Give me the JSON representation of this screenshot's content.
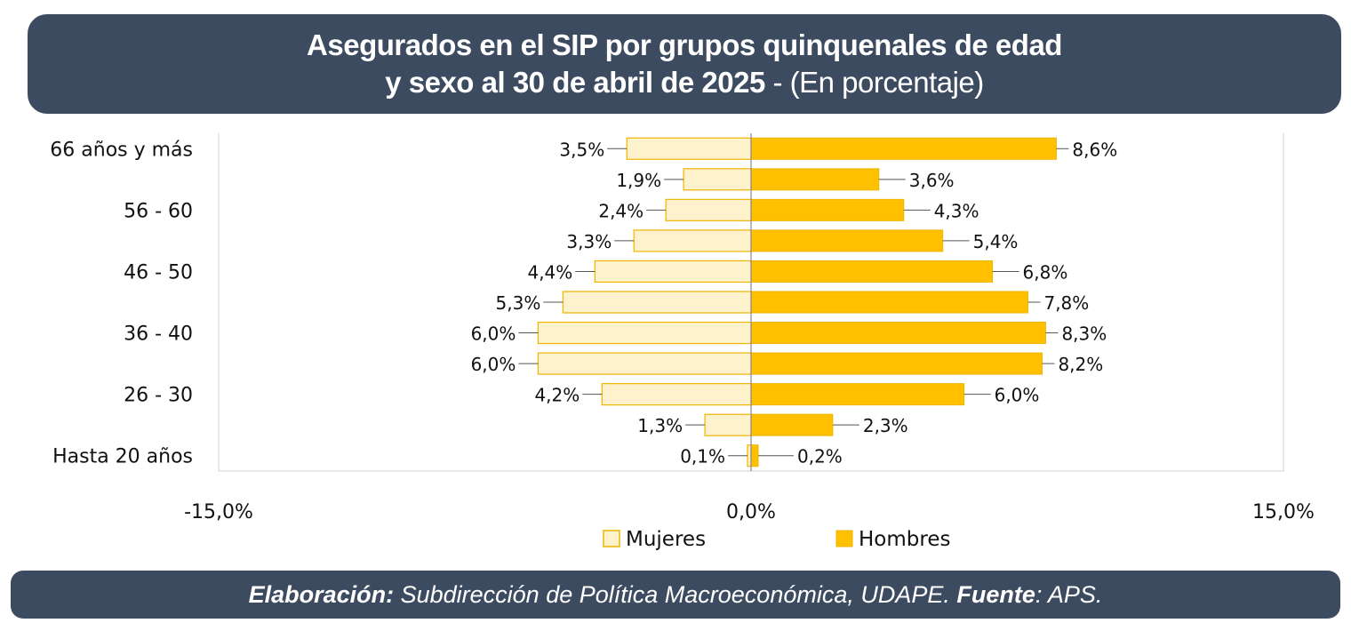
{
  "header": {
    "title_line1": "Asegurados en el SIP por grupos quinquenales de edad",
    "title_line2_bold": "y sexo al 30 de abril de 2025",
    "title_line2_rest": " - (En porcentaje)"
  },
  "footer": {
    "label1": "Elaboración:",
    "text1": " Subdirección de Política Macroeconómica, UDAPE. ",
    "label2": "Fuente",
    "text2": ": APS."
  },
  "chart_data": {
    "type": "bar",
    "orientation": "horizontal-population-pyramid",
    "categories_top_to_bottom": [
      "66 años y más",
      "",
      "56  -  60",
      "",
      "46  -  50",
      "",
      "36  -  40",
      "",
      "26  -  30",
      "",
      "Hasta 20 años"
    ],
    "series": [
      {
        "name": "Mujeres",
        "values": [
          -3.5,
          -1.9,
          -2.4,
          -3.3,
          -4.4,
          -5.3,
          -6.0,
          -6.0,
          -4.2,
          -1.3,
          -0.1
        ],
        "labels": [
          "3,5%",
          "1,9%",
          "2,4%",
          "3,3%",
          "4,4%",
          "5,3%",
          "6,0%",
          "6,0%",
          "4,2%",
          "1,3%",
          "0,1%"
        ],
        "color": "#fdf2cc",
        "border": "#f0b400"
      },
      {
        "name": "Hombres",
        "values": [
          8.6,
          3.6,
          4.3,
          5.4,
          6.8,
          7.8,
          8.3,
          8.2,
          6.0,
          2.3,
          0.2
        ],
        "labels": [
          "8,6%",
          "3,6%",
          "4,3%",
          "5,4%",
          "6,8%",
          "7,8%",
          "8,3%",
          "8,2%",
          "6,0%",
          "2,3%",
          "0,2%"
        ],
        "color": "#ffc000",
        "border": "#f0b400"
      }
    ],
    "xlim": [
      -15,
      15
    ],
    "x_ticks": [
      "-15,0%",
      "0,0%",
      "15,0%"
    ],
    "legend_position": "bottom",
    "grid": false
  }
}
